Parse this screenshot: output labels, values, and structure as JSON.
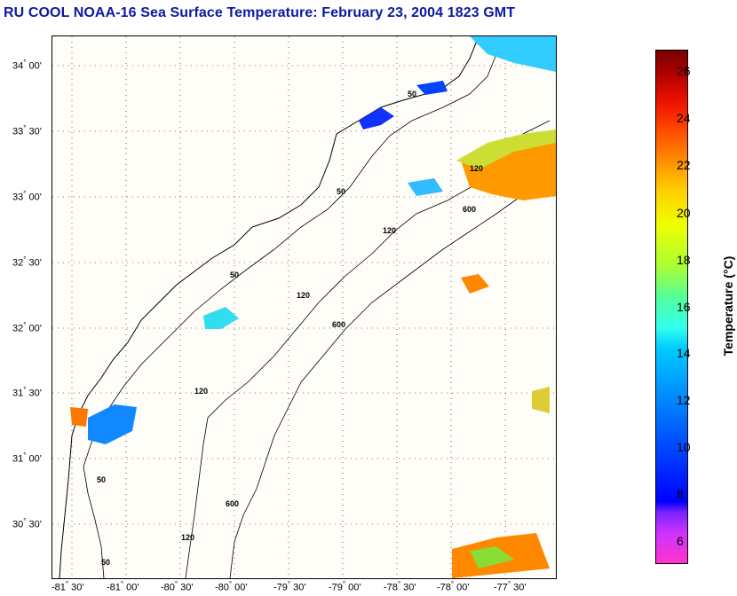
{
  "title": "RU COOL  NOAA-16  Sea Surface Temperature:  February 23, 2004 1823 GMT",
  "map": {
    "lat_labels": [
      {
        "deg": "34",
        "min": "00'"
      },
      {
        "deg": "33",
        "min": "30'"
      },
      {
        "deg": "33",
        "min": "00'"
      },
      {
        "deg": "32",
        "min": "30'"
      },
      {
        "deg": "32",
        "min": "00'"
      },
      {
        "deg": "31",
        "min": "30'"
      },
      {
        "deg": "31",
        "min": "00'"
      },
      {
        "deg": "30",
        "min": "30'"
      }
    ],
    "lon_labels": [
      {
        "deg": "-81",
        "min": "30'"
      },
      {
        "deg": "-81",
        "min": "00'"
      },
      {
        "deg": "-80",
        "min": "30'"
      },
      {
        "deg": "-80",
        "min": "00'"
      },
      {
        "deg": "-79",
        "min": "30'"
      },
      {
        "deg": "-79",
        "min": "00'"
      },
      {
        "deg": "-78",
        "min": "30'"
      },
      {
        "deg": "-78",
        "min": "00'"
      },
      {
        "deg": "-77",
        "min": "30'"
      }
    ],
    "contour_labels": [
      "50",
      "120",
      "600",
      "50",
      "120",
      "600",
      "50",
      "120",
      "600",
      "50",
      "120",
      "50",
      "120"
    ]
  },
  "colorbar": {
    "label": "Temperature (°C)",
    "ticks": [
      "26",
      "24",
      "22",
      "20",
      "18",
      "16",
      "14",
      "12",
      "10",
      "8",
      "6"
    ]
  }
}
